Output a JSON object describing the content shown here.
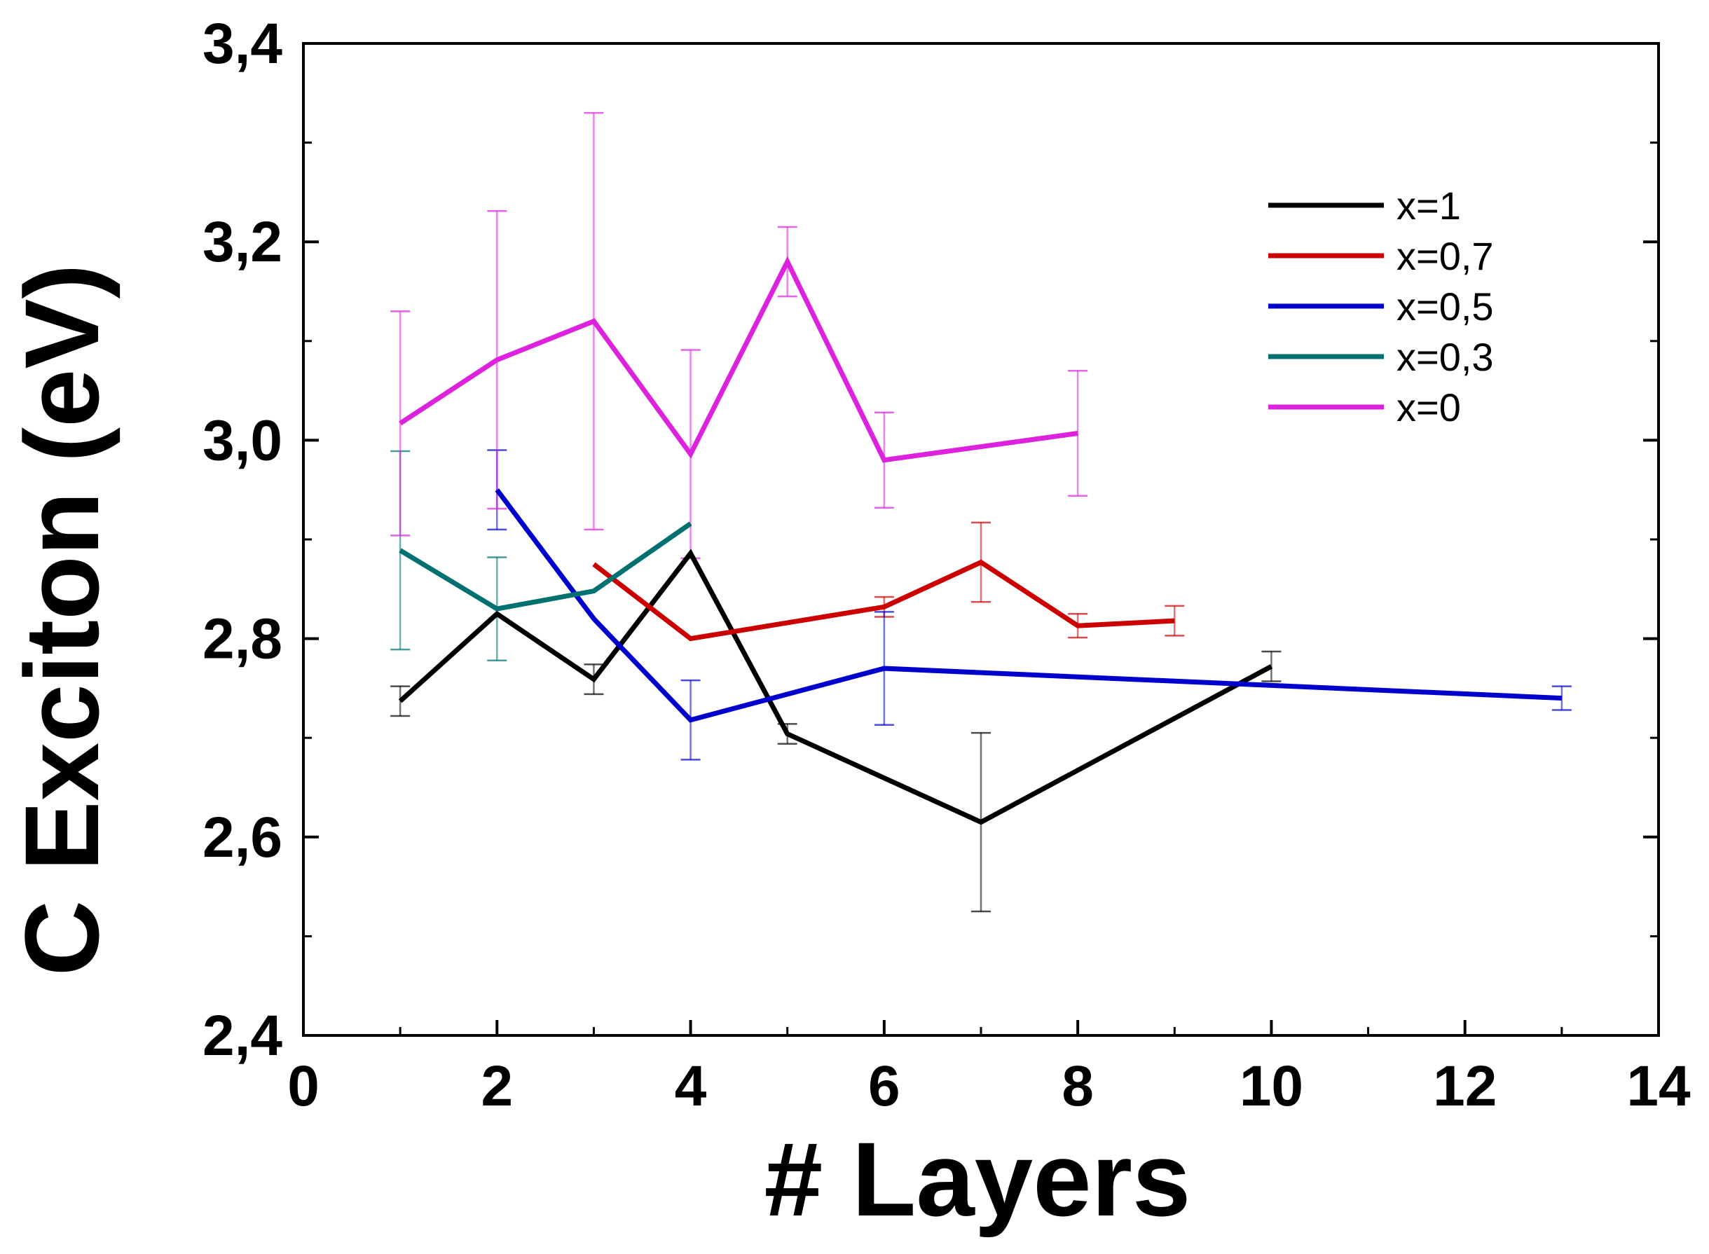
{
  "chart_data": {
    "type": "line",
    "title": "",
    "xlabel": "# Layers",
    "ylabel": "C Exciton (eV)",
    "xlim": [
      0,
      14
    ],
    "ylim": [
      2.4,
      3.4
    ],
    "x_ticks": [
      0,
      2,
      4,
      6,
      8,
      10,
      12,
      14
    ],
    "x_tick_labels": [
      "0",
      "2",
      "4",
      "6",
      "8",
      "10",
      "12",
      "14"
    ],
    "y_ticks": [
      2.4,
      2.6,
      2.8,
      3.0,
      3.2,
      3.4
    ],
    "y_tick_labels": [
      "2,4",
      "2,6",
      "2,8",
      "3,0",
      "3,2",
      "3,4"
    ],
    "grid": false,
    "legend_position": "top-right",
    "series": [
      {
        "name": "x=1",
        "color": "#000000",
        "x": [
          1,
          2,
          3,
          4,
          5,
          7,
          10
        ],
        "y": [
          2.737,
          2.825,
          2.759,
          2.886,
          2.704,
          2.615,
          2.772
        ],
        "err": [
          0.015,
          0.0,
          0.015,
          0.0,
          0.01,
          0.09,
          0.015
        ]
      },
      {
        "name": "x=0,7",
        "color": "#cc0000",
        "x": [
          3,
          4,
          6,
          7,
          8,
          9
        ],
        "y": [
          2.875,
          2.8,
          2.832,
          2.877,
          2.813,
          2.818
        ],
        "err": [
          0.0,
          0.0,
          0.01,
          0.04,
          0.012,
          0.015
        ]
      },
      {
        "name": "x=0,5",
        "color": "#0000cc",
        "x": [
          2,
          3,
          4,
          6,
          13
        ],
        "y": [
          2.95,
          2.82,
          2.718,
          2.77,
          2.74
        ],
        "err": [
          0.04,
          0.0,
          0.04,
          0.057,
          0.012
        ]
      },
      {
        "name": "x=0,3",
        "color": "#007070",
        "x": [
          1,
          2,
          3,
          4
        ],
        "y": [
          2.889,
          2.83,
          2.848,
          2.916
        ],
        "err": [
          0.1,
          0.052,
          0.0,
          0.0
        ]
      },
      {
        "name": "x=0",
        "color": "#dd22dd",
        "x": [
          1,
          2,
          3,
          4,
          5,
          6,
          8
        ],
        "y": [
          3.017,
          3.081,
          3.12,
          2.986,
          3.18,
          2.98,
          3.007
        ],
        "err": [
          0.113,
          0.15,
          0.21,
          0.105,
          0.035,
          0.048,
          0.063
        ]
      }
    ]
  }
}
